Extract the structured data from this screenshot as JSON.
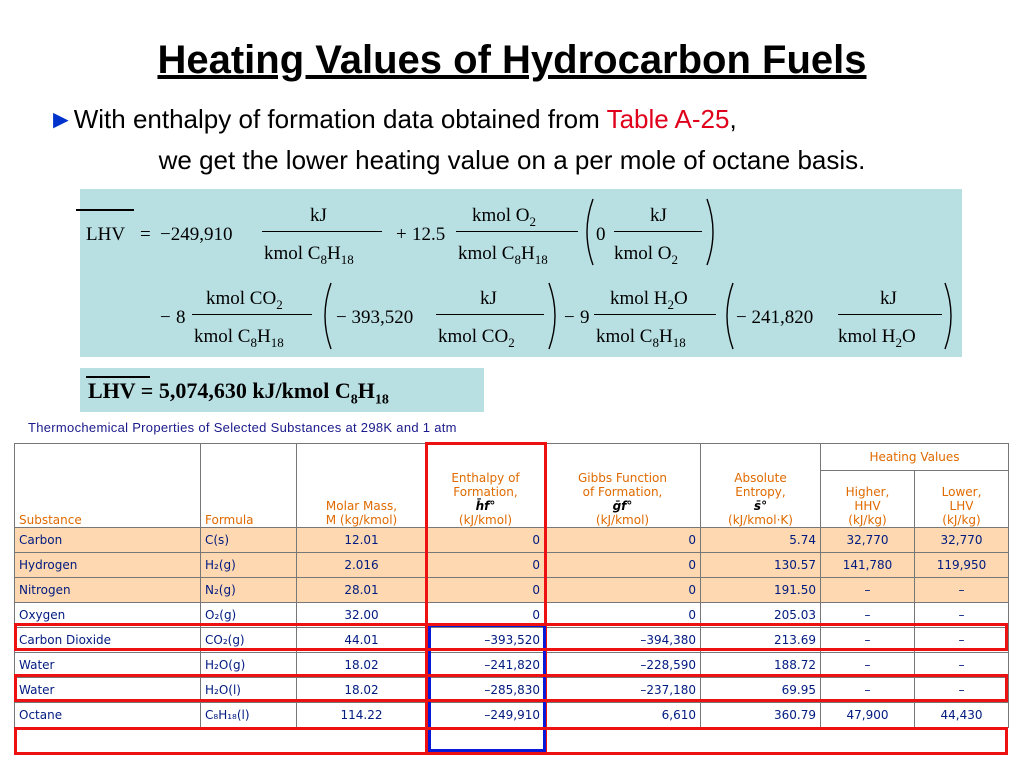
{
  "page": {
    "title": "Heating Values of Hydrocarbon Fuels",
    "intro_line1_before": "With enthalpy of formation data obtained from ",
    "intro_link": "Table A-25",
    "intro_line1_after": ",",
    "intro_line2": "we get the lower heating value on a per mole of octane basis.",
    "bullet_glyph": "►"
  },
  "equation": {
    "lhv": "LHV",
    "eq": "=",
    "term1": "−249,910",
    "kj": "kJ",
    "kmol_c8h18": "kmol C",
    "plus": "+",
    "term2": "12.5",
    "kmol_o2": "kmol O",
    "zero": "0",
    "minus": "−",
    "term3": "8",
    "kmol_co2": "kmol CO",
    "term4": "− 393,520",
    "term5": "9",
    "kmol_h2o": "kmol H",
    "term6": "− 241,820"
  },
  "result": {
    "text": "LHV = 5,074,630 kJ/kmol C",
    "sub8": "8",
    "h": "H",
    "sub18": "18"
  },
  "table": {
    "caption": "Thermochemical Properties of Selected Substances at 298K and 1 atm",
    "group_header": "Heating Values",
    "headers": {
      "substance": "Substance",
      "formula": "Formula",
      "molar_mass_1": "Molar Mass,",
      "molar_mass_2": "M (kg/kmol)",
      "enthalpy_1": "Enthalpy of",
      "enthalpy_2": "Formation,",
      "enthalpy_sym": "h̄f°",
      "enthalpy_unit": "(kJ/kmol)",
      "gibbs_1": "Gibbs Function",
      "gibbs_2": "of Formation,",
      "gibbs_sym": "ḡf°",
      "gibbs_unit": "(kJ/kmol)",
      "entropy_1": "Absolute",
      "entropy_2": "Entropy,",
      "entropy_sym": "s̄°",
      "entropy_unit": "(kJ/kmol·K)",
      "hhv_1": "Higher,",
      "hhv_2": "HHV",
      "hhv_unit": "(kJ/kg)",
      "lhv_1": "Lower,",
      "lhv_2": "LHV",
      "lhv_unit": "(kJ/kg)"
    },
    "rows": [
      {
        "substance": "Carbon",
        "formula": "C(s)",
        "molar_mass": "12.01",
        "hf": "0",
        "gf": "0",
        "s": "5.74",
        "hhv": "32,770",
        "lhv": "32,770"
      },
      {
        "substance": "Hydrogen",
        "formula": "H₂(g)",
        "molar_mass": "2.016",
        "hf": "0",
        "gf": "0",
        "s": "130.57",
        "hhv": "141,780",
        "lhv": "119,950"
      },
      {
        "substance": "Nitrogen",
        "formula": "N₂(g)",
        "molar_mass": "28.01",
        "hf": "0",
        "gf": "0",
        "s": "191.50",
        "hhv": "–",
        "lhv": "–"
      },
      {
        "substance": "Oxygen",
        "formula": "O₂(g)",
        "molar_mass": "32.00",
        "hf": "0",
        "gf": "0",
        "s": "205.03",
        "hhv": "–",
        "lhv": "–"
      },
      {
        "substance": "Carbon Dioxide",
        "formula": "CO₂(g)",
        "molar_mass": "44.01",
        "hf": "–393,520",
        "gf": "–394,380",
        "s": "213.69",
        "hhv": "–",
        "lhv": "–"
      },
      {
        "substance": "Water",
        "formula": "H₂O(g)",
        "molar_mass": "18.02",
        "hf": "–241,820",
        "gf": "–228,590",
        "s": "188.72",
        "hhv": "–",
        "lhv": "–"
      },
      {
        "substance": "Water",
        "formula": "H₂O(l)",
        "molar_mass": "18.02",
        "hf": "–285,830",
        "gf": "–237,180",
        "s": "69.95",
        "hhv": "–",
        "lhv": "–"
      },
      {
        "substance": "Octane",
        "formula": "C₈H₁₈(l)",
        "molar_mass": "114.22",
        "hf": "–249,910",
        "gf": "6,610",
        "s": "360.79",
        "hhv": "47,900",
        "lhv": "44,430"
      }
    ]
  },
  "colors": {
    "highlight_red": "#ee1111",
    "highlight_blue": "#0a18d8",
    "equation_bg": "#b8dfe2",
    "row_fill": "#fdd8b0",
    "header_text": "#e06a00",
    "body_text": "#001a80"
  }
}
